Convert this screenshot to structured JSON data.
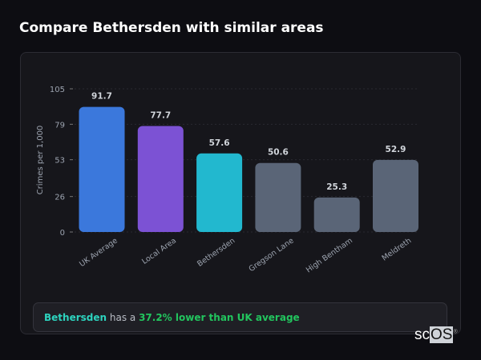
{
  "title": "Compare Bethersden with similar areas",
  "chart_data": {
    "type": "bar",
    "title": "",
    "xlabel": "",
    "ylabel": "Crimes per 1,000",
    "ylim": [
      0,
      105
    ],
    "yticks": [
      0,
      26,
      53,
      79,
      105
    ],
    "grid": true,
    "categories": [
      "UK Average",
      "Local Area",
      "Bethersden",
      "Gregson Lane",
      "High Bentham",
      "Meldreth"
    ],
    "values": [
      91.7,
      77.7,
      57.6,
      50.6,
      25.3,
      52.9
    ],
    "data_labels": [
      "91.7",
      "77.7",
      "57.6",
      "50.6",
      "25.3",
      "52.9"
    ],
    "colors": [
      "#3b78dc",
      "#7c52d4",
      "#22b8cf",
      "#5a6577",
      "#5a6577",
      "#5a6577"
    ]
  },
  "summary": {
    "area": "Bethersden",
    "middle": " has a ",
    "comparison": "37.2% lower than UK average"
  },
  "logo": {
    "part1": "sc",
    "part2": "OS",
    "mark": "®"
  }
}
